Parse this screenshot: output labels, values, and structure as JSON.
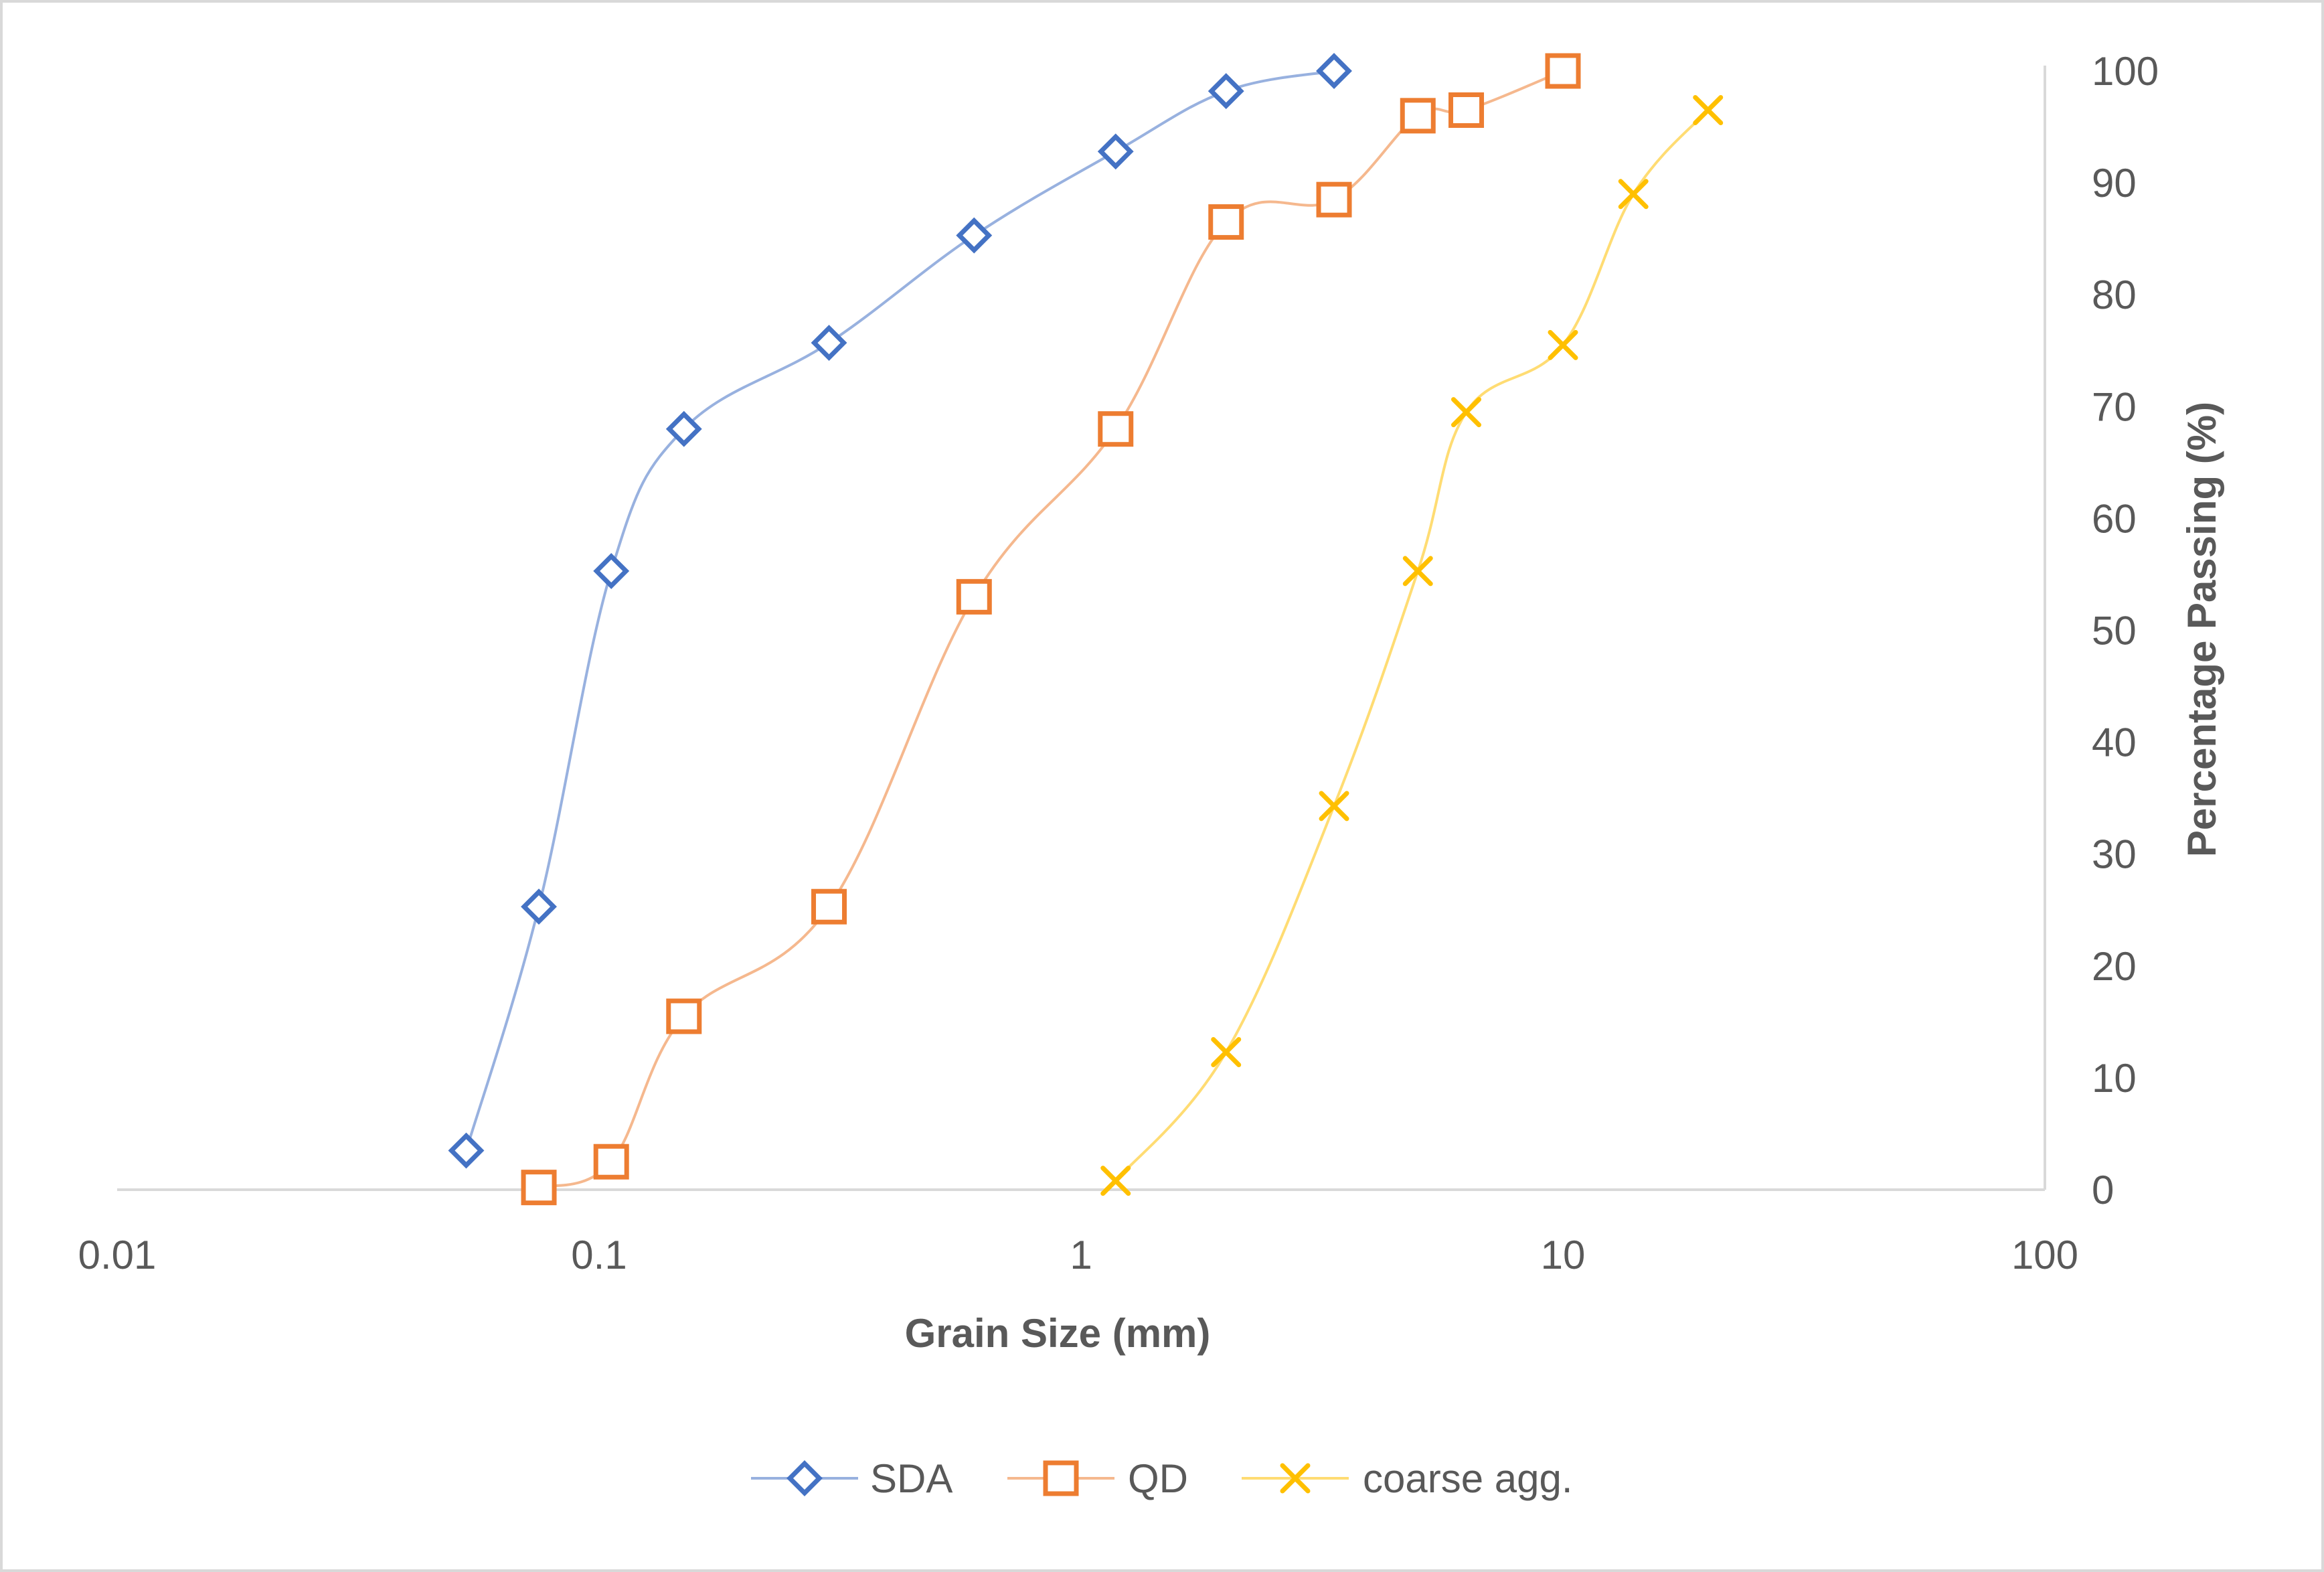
{
  "chart_data": {
    "type": "scatter",
    "title": "",
    "xlabel": "Grain Size (mm)",
    "ylabel": "Percentage Passing (%)",
    "xscale": "log",
    "xlim": [
      0.01,
      100
    ],
    "ylim": [
      0,
      100
    ],
    "x_ticks": [
      0.01,
      0.1,
      1,
      10,
      100
    ],
    "x_tick_labels": [
      "0.01",
      "0.1",
      "1",
      "10",
      "100"
    ],
    "y_ticks": [
      0,
      10,
      20,
      30,
      40,
      50,
      60,
      70,
      80,
      90,
      100
    ],
    "y_tick_labels": [
      "0",
      "10",
      "20",
      "30",
      "40",
      "50",
      "60",
      "70",
      "80",
      "90",
      "100"
    ],
    "y_axis_side": "right",
    "grid": false,
    "legend_position": "bottom",
    "series": [
      {
        "name": "SDA",
        "color": "#4472c4",
        "marker": "diamond",
        "x": [
          0.053,
          0.075,
          0.106,
          0.15,
          0.3,
          0.6,
          1.18,
          2.0,
          3.35
        ],
        "y": [
          3.5,
          25.3,
          55.3,
          68.0,
          75.7,
          85.3,
          92.8,
          98.2,
          100.0
        ]
      },
      {
        "name": "QD",
        "color": "#ed7d31",
        "marker": "square",
        "x": [
          0.075,
          0.106,
          0.15,
          0.3,
          0.6,
          1.18,
          2.0,
          3.35,
          5.0,
          6.3,
          10.0
        ],
        "y": [
          0.2,
          2.5,
          15.5,
          25.3,
          53.0,
          68.0,
          86.5,
          88.5,
          96.0,
          96.5,
          100.0
        ]
      },
      {
        "name": "coarse agg.",
        "color": "#ffc000",
        "marker": "x",
        "x": [
          1.18,
          2.0,
          3.35,
          5.0,
          6.3,
          10.0,
          14.0,
          20.0
        ],
        "y": [
          0.8,
          12.3,
          34.3,
          55.3,
          69.5,
          75.5,
          89.0,
          96.5
        ]
      }
    ]
  }
}
